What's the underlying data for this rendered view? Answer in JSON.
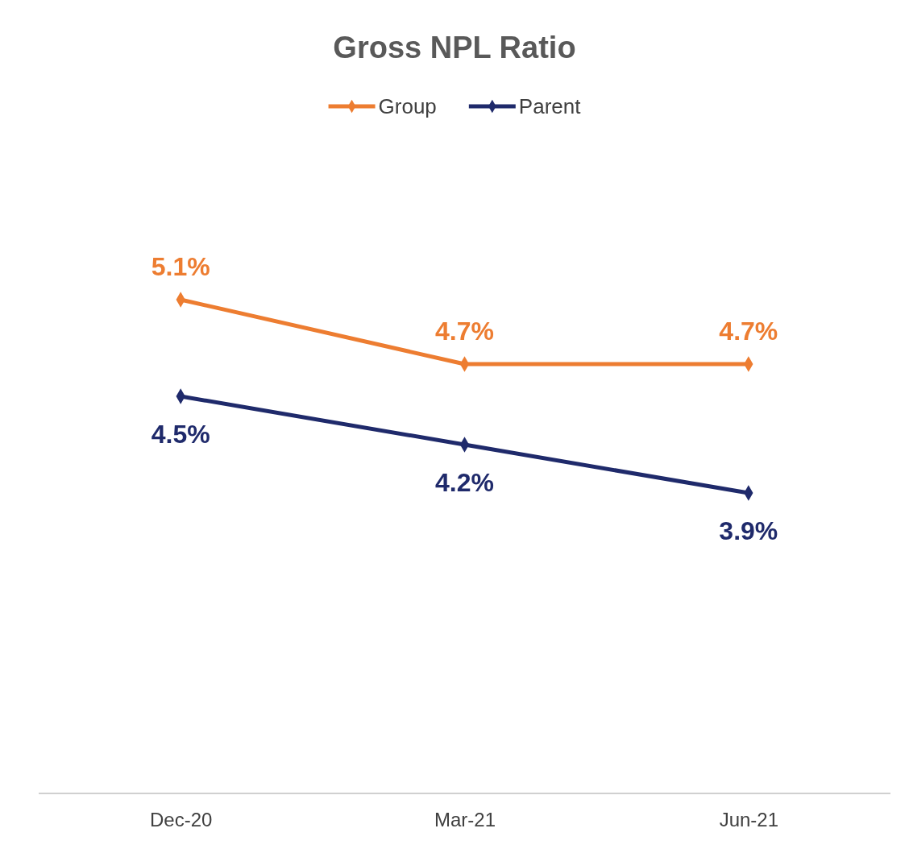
{
  "chart_data": {
    "type": "line",
    "title": "Gross NPL Ratio",
    "categories": [
      "Dec-20",
      "Mar-21",
      "Jun-21"
    ],
    "series": [
      {
        "name": "Group",
        "color": "#ed7d31",
        "values": [
          5.1,
          4.7,
          4.7
        ],
        "value_labels": [
          "5.1%",
          "4.7%",
          "4.7%"
        ]
      },
      {
        "name": "Parent",
        "color": "#1f2a6b",
        "values": [
          4.5,
          4.2,
          3.9
        ],
        "value_labels": [
          "4.5%",
          "4.2%",
          "3.9%"
        ]
      }
    ],
    "legend": "top",
    "marker": "diamond",
    "line_style": "solid",
    "tick_labels": "x"
  }
}
